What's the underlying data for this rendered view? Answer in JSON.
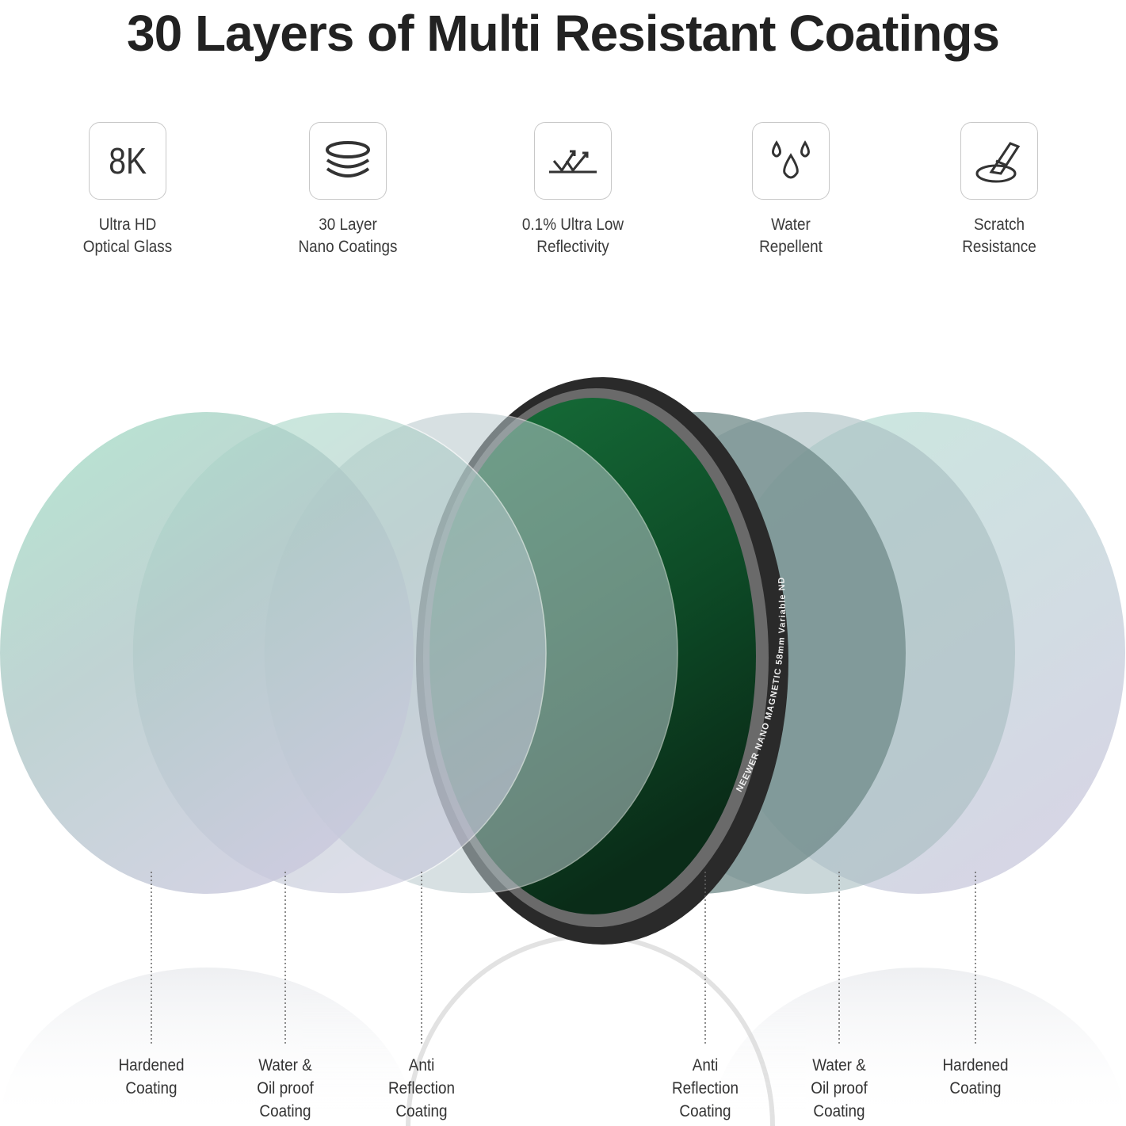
{
  "title": "30 Layers of Multi Resistant Coatings",
  "features": [
    {
      "icon": "8k-text-icon",
      "icon_text": "8K",
      "line1": "Ultra HD",
      "line2": "Optical Glass"
    },
    {
      "icon": "stacked-layers-icon",
      "line1": "30 Layer",
      "line2": "Nano Coatings"
    },
    {
      "icon": "reflection-arrows-icon",
      "line1": "0.1% Ultra Low",
      "line2": "Reflectivity"
    },
    {
      "icon": "water-drops-icon",
      "line1": "Water",
      "line2": "Repellent"
    },
    {
      "icon": "scratch-tool-icon",
      "line1": "Scratch",
      "line2": "Resistance"
    }
  ],
  "layers": [
    {
      "lines": [
        "Hardened",
        "Coating"
      ]
    },
    {
      "lines": [
        "Water &",
        "Oil proof",
        "Coating"
      ]
    },
    {
      "lines": [
        "Anti",
        "Reflection",
        "Coating"
      ]
    },
    {
      "lines": [
        "Anti",
        "Reflection",
        "Coating"
      ]
    },
    {
      "lines": [
        "Water &",
        "Oil proof",
        "Coating"
      ]
    },
    {
      "lines": [
        "Hardened",
        "Coating"
      ]
    }
  ],
  "product_lettering": "NEEWER NANO MAGNETIC 58mm Variable ND",
  "colors": {
    "glass_green": "#0f5a2c",
    "plate_mint": "#a8dcc8",
    "plate_lavender": "#c6c8da",
    "ring": "#2a2a2a"
  }
}
